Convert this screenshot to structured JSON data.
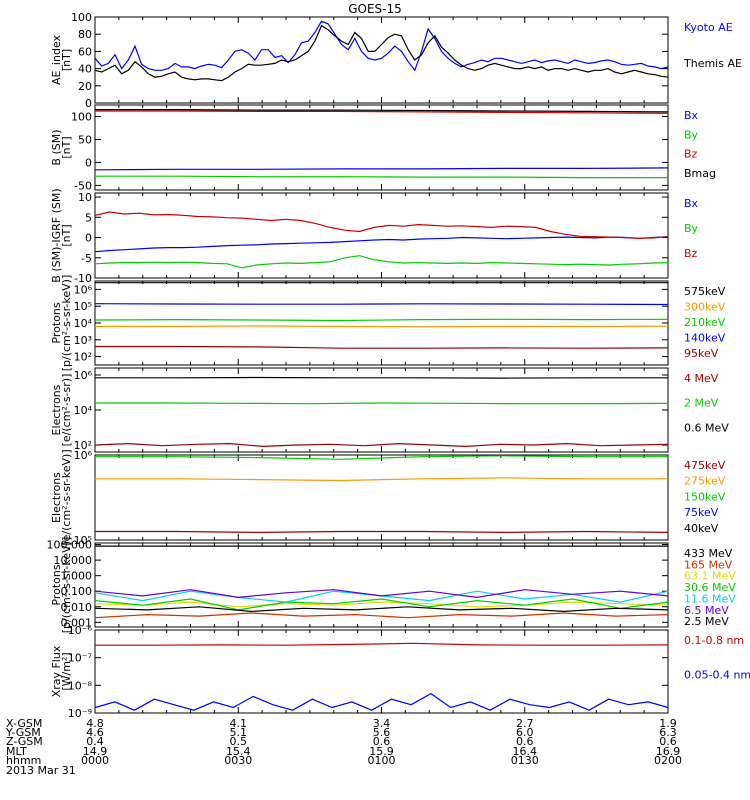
{
  "title": "GOES-15",
  "chart_data": [
    {
      "type": "line",
      "panel": "ae",
      "ylabel": "AE_index\n[nT]",
      "ylim": [
        0,
        100
      ],
      "y_ticks": [
        "0",
        "20",
        "40",
        "60",
        "80",
        "100"
      ],
      "series": [
        {
          "name": "Kyoto AE",
          "color": "#0000ff",
          "values": [
            52,
            43,
            46,
            56,
            40,
            50,
            66,
            45,
            40,
            38,
            38,
            40,
            46,
            42,
            42,
            40,
            43,
            45,
            44,
            41,
            50,
            60,
            62,
            58,
            50,
            62,
            62,
            53,
            55,
            47,
            56,
            70,
            72,
            82,
            95,
            92,
            80,
            68,
            62,
            75,
            60,
            52,
            50,
            52,
            58,
            66,
            60,
            48,
            38,
            60,
            86,
            75,
            60,
            52,
            46,
            42,
            45,
            47,
            50,
            48,
            52,
            52,
            50,
            48,
            46,
            48,
            50,
            47,
            49,
            50,
            48,
            46,
            50,
            48,
            46,
            47,
            49,
            50,
            48,
            45,
            44,
            45,
            46,
            43,
            42,
            40,
            42
          ]
        },
        {
          "name": "Themis AE",
          "color": "#000000",
          "values": [
            38,
            36,
            40,
            44,
            34,
            38,
            48,
            42,
            34,
            30,
            31,
            34,
            36,
            30,
            28,
            27,
            28,
            28,
            27,
            26,
            30,
            36,
            40,
            45,
            44,
            44,
            45,
            46,
            50,
            48,
            50,
            55,
            60,
            72,
            90,
            85,
            78,
            72,
            68,
            82,
            75,
            60,
            60,
            68,
            76,
            80,
            78,
            62,
            50,
            56,
            70,
            78,
            65,
            58,
            50,
            44,
            40,
            38,
            40,
            44,
            46,
            44,
            42,
            40,
            40,
            42,
            40,
            42,
            38,
            40,
            40,
            38,
            40,
            38,
            36,
            38,
            38,
            40,
            36,
            34,
            36,
            38,
            36,
            34,
            33,
            31,
            30
          ]
        }
      ]
    },
    {
      "type": "line",
      "panel": "bsm",
      "ylabel": "B (SM)\n[nT]",
      "ylim": [
        -60,
        125
      ],
      "y_ticks": [
        "-50",
        "0",
        "50",
        "100"
      ],
      "series": [
        {
          "name": "Bx",
          "color": "#0000ff",
          "values": [
            -16,
            -15,
            -15,
            -14,
            -14,
            -13,
            -13,
            -12
          ]
        },
        {
          "name": "By",
          "color": "#00cc00",
          "values": [
            -30,
            -30,
            -31,
            -31,
            -32,
            -32,
            -33,
            -33
          ]
        },
        {
          "name": "Bz",
          "color": "#cc0000",
          "values": [
            112,
            112,
            111,
            111,
            110,
            109,
            108,
            107
          ]
        },
        {
          "name": "Bmag",
          "color": "#000000",
          "values": [
            115,
            115,
            114,
            114,
            113,
            112,
            111,
            110
          ]
        }
      ]
    },
    {
      "type": "line",
      "panel": "bigrf",
      "ylabel": "B (SM)-IGRF (SM)\n[nT]",
      "ylim": [
        -10,
        11
      ],
      "y_ticks": [
        "-10",
        "-5",
        "0",
        "5",
        "10"
      ],
      "series": [
        {
          "name": "Bx",
          "color": "#0000ff",
          "values": [
            -3.5,
            -3.2,
            -3,
            -2.8,
            -2.6,
            -2.5,
            -2.5,
            -2.4,
            -2.2,
            -2,
            -1.9,
            -1.8,
            -1.6,
            -1.5,
            -1.4,
            -1.3,
            -1.2,
            -1,
            -0.8,
            -0.6,
            -0.5,
            -0.6,
            -0.4,
            -0.3,
            -0.2,
            0,
            -0.1,
            -0.2,
            -0.3,
            -0.2,
            -0.1,
            0,
            0.1,
            0,
            -0.1,
            0.1,
            0,
            -0.2,
            0,
            0.2
          ]
        },
        {
          "name": "By",
          "color": "#00cc00",
          "values": [
            -6.5,
            -6.3,
            -6.2,
            -6.2,
            -6.1,
            -6.2,
            -6.1,
            -6.2,
            -6.4,
            -6.5,
            -7.5,
            -6.8,
            -6.5,
            -6.3,
            -6.4,
            -6.2,
            -6,
            -5,
            -4.5,
            -5.5,
            -6,
            -6.3,
            -6.2,
            -6.3,
            -6.4,
            -6.3,
            -6.4,
            -6.2,
            -6.3,
            -6.4,
            -6.5,
            -6.6,
            -6.7,
            -6.6,
            -6.7,
            -6.8,
            -6.6,
            -6.5,
            -6.3,
            -6.2
          ]
        },
        {
          "name": "Bz",
          "color": "#cc0000",
          "values": [
            5.5,
            6.3,
            5.8,
            6,
            5.6,
            5.7,
            5.5,
            5.2,
            5.1,
            4.9,
            4.8,
            4.5,
            4.2,
            4.5,
            4.2,
            3.5,
            2.5,
            1.8,
            1.5,
            2.5,
            3,
            2.8,
            3.2,
            3,
            2.8,
            2.9,
            2.7,
            2.5,
            2.8,
            2.7,
            2.5,
            1.5,
            0.8,
            0.3,
            0.2,
            0.1,
            0,
            -0.2,
            -0.1,
            0.2
          ]
        }
      ]
    },
    {
      "type": "line",
      "panel": "protons1",
      "ylabel": "Protons\n[p/(cm²-s-sr-keV)]",
      "log": true,
      "ylim_exp": [
        1.5,
        6.5
      ],
      "y_ticks": [
        "10²",
        "10³",
        "10⁴",
        "10⁵",
        "10⁶"
      ],
      "series": [
        {
          "name": "575keV",
          "color": "#000000",
          "values": [
            6.4,
            6.4,
            6.4,
            6.4,
            6.4,
            6.4,
            6.4,
            6.4
          ]
        },
        {
          "name": "300keV",
          "color": "#ff9900",
          "values": [
            3.8,
            3.8,
            3.82,
            3.8,
            3.78,
            3.8,
            3.8,
            3.81
          ]
        },
        {
          "name": "210keV",
          "color": "#00cc00",
          "values": [
            4.18,
            4.2,
            4.18,
            4.15,
            4.2,
            4.22,
            4.2,
            4.22
          ]
        },
        {
          "name": "140keV",
          "color": "#0000ff",
          "values": [
            5.15,
            5.13,
            5.12,
            5.12,
            5.14,
            5.13,
            5.12,
            5.1
          ]
        },
        {
          "name": "95keV",
          "color": "#990000",
          "values": [
            2.6,
            2.6,
            2.58,
            2.5,
            2.5,
            2.52,
            2.5,
            2.52
          ]
        }
      ]
    },
    {
      "type": "line",
      "panel": "electrons1",
      "ylabel": "Electrons\n[e/(cm²-s-sr)]",
      "log": true,
      "ylim_exp": [
        0.5,
        6.5
      ],
      "y_ticks": [
        "10²",
        "10⁴",
        "10⁶"
      ],
      "series": [
        {
          "name": "4 MeV",
          "color": "#990000",
          "values": [
            1.0,
            1.1,
            0.95,
            1.05,
            1.1,
            0.9,
            1.0,
            1.05,
            0.95,
            1.1,
            1.0,
            0.9,
            1.05,
            1.0,
            1.1,
            0.95,
            1.0,
            1.05
          ]
        },
        {
          "name": "2 MeV",
          "color": "#00cc00",
          "values": [
            4.0,
            4.0,
            3.98,
            3.95,
            4.0,
            3.98,
            3.95,
            3.96,
            3.97
          ]
        },
        {
          "name": "0.6 MeV",
          "color": "#000000",
          "values": [
            5.8,
            5.8,
            5.82,
            5.8,
            5.8,
            5.78,
            5.8,
            5.8
          ]
        }
      ]
    },
    {
      "type": "line",
      "panel": "electrons2",
      "ylabel": "Electrons\n[e/(cm²-s-sr-keV)]",
      "log": true,
      "ylim_exp": [
        5,
        6
      ],
      "y_ticks": [
        "10⁵",
        "10⁶"
      ],
      "series": [
        {
          "name": "475keV",
          "color": "#990000",
          "values": [
            5.1,
            5.1,
            5.09,
            5.1,
            5.1,
            5.09,
            5.1,
            5.09
          ]
        },
        {
          "name": "275keV",
          "color": "#ff9900",
          "values": [
            5.72,
            5.72,
            5.71,
            5.7,
            5.72,
            5.73,
            5.72,
            5.72
          ]
        },
        {
          "name": "150keV",
          "color": "#00cc00",
          "values": [
            5.98,
            5.98,
            5.97,
            5.95,
            5.98,
            5.99,
            5.98,
            5.98
          ]
        },
        {
          "name": "75keV",
          "color": "#0000ff",
          "values": []
        },
        {
          "name": "40keV",
          "color": "#000000",
          "values": []
        }
      ]
    },
    {
      "type": "line",
      "panel": "protons2",
      "ylabel": "Protons\n[p/(cm²-s-sr-keV)]",
      "log": true,
      "ylim_exp": [
        -3.3,
        2.1
      ],
      "y_ticks": [
        "0.001",
        "0.010",
        "0.100",
        "1.000",
        "10.000",
        "100.000"
      ],
      "series": [
        {
          "name": "433 MeV",
          "color": "#000000",
          "values": [
            1.9,
            1.9,
            1.9,
            1.9,
            1.9,
            1.9
          ]
        },
        {
          "name": "165 MeV",
          "color": "#cc3300",
          "values": [
            -2.7,
            -2.5,
            -2.6,
            -2.4,
            -2.6,
            -2.5,
            -2.7,
            -2.5,
            -2.6,
            -2.4,
            -2.6,
            -2.5
          ]
        },
        {
          "name": "63.1 MeV",
          "color": "#dddd00",
          "values": [
            -1.8,
            -1.9,
            -1.7,
            -2.0,
            -1.8,
            -1.9,
            -1.7,
            -1.8,
            -2.0,
            -1.9,
            -1.7,
            -1.8,
            -1.9
          ]
        },
        {
          "name": "30.6 MeV",
          "color": "#00cc00",
          "values": [
            -1.6,
            -1.9,
            -1.5,
            -2.2,
            -1.7,
            -1.8,
            -1.5,
            -2.0,
            -1.6,
            -1.9,
            -1.5,
            -2.1,
            -1.7
          ]
        },
        {
          "name": "11.6 MeV",
          "color": "#00ccff",
          "values": [
            -1.1,
            -1.6,
            -1.0,
            -1.4,
            -1.7,
            -1.0,
            -1.3,
            -1.6,
            -1.0,
            -1.5,
            -1.2,
            -1.7,
            -1.0
          ]
        },
        {
          "name": "6.5 MeV",
          "color": "#6600cc",
          "values": [
            -1.0,
            -1.3,
            -0.9,
            -1.4,
            -1.1,
            -0.9,
            -1.3,
            -1.0,
            -1.4,
            -0.9,
            -1.2,
            -1.0,
            -1.3
          ]
        },
        {
          "name": "2.5 MeV",
          "color": "#000000",
          "values": [
            -2.1,
            -2.2,
            -2.0,
            -2.3,
            -2.1,
            -2.2,
            -2.0,
            -2.2,
            -2.1,
            -2.3,
            -2.1,
            -2.2
          ]
        }
      ]
    },
    {
      "type": "line",
      "panel": "xray",
      "ylabel": "Xray Flux\n[W/m²]",
      "log": true,
      "ylim_exp": [
        -9,
        -6
      ],
      "y_ticks": [
        "10⁻⁹",
        "10⁻⁸",
        "10⁻⁷",
        "10⁻⁶"
      ],
      "series": [
        {
          "name": "0.1-0.8 nm",
          "color": "#cc0000",
          "values": [
            -6.55,
            -6.55,
            -6.54,
            -6.55,
            -6.52,
            -6.48,
            -6.54,
            -6.55,
            -6.55,
            -6.54
          ]
        },
        {
          "name": "0.05-0.4 nm",
          "color": "#0000ff",
          "values": [
            -8.8,
            -8.6,
            -8.9,
            -8.5,
            -8.7,
            -8.9,
            -8.6,
            -8.8,
            -8.4,
            -8.7,
            -8.9,
            -8.5,
            -8.8,
            -8.6,
            -8.9,
            -8.5,
            -8.7,
            -8.3,
            -8.8,
            -8.6,
            -8.9,
            -8.5,
            -8.7,
            -8.8,
            -8.6,
            -8.9,
            -8.5,
            -8.7,
            -8.6,
            -8.8
          ]
        }
      ]
    }
  ],
  "x_axis": {
    "row_labels": [
      "X-GSM",
      "Y-GSM",
      "Z-GSM",
      "MLT",
      "hhmm",
      "2013 Mar 31"
    ],
    "columns": [
      [
        "4.8",
        "4.6",
        "0.4",
        "14.9",
        "0000"
      ],
      [
        "4.1",
        "5.1",
        "0.5",
        "15.4",
        "0030"
      ],
      [
        "3.4",
        "5.6",
        "0.6",
        "15.9",
        "0100"
      ],
      [
        "2.7",
        "6.0",
        "0.6",
        "16.4",
        "0130"
      ],
      [
        "1.9",
        "6.3",
        "0.6",
        "16.9",
        "0200"
      ]
    ]
  }
}
